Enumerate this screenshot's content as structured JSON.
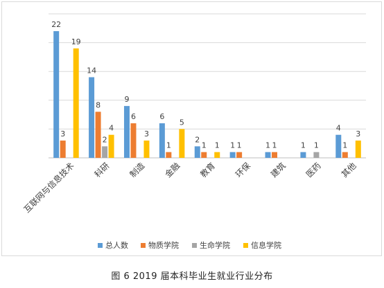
{
  "chart_data": {
    "type": "bar",
    "title": "",
    "xlabel": "",
    "ylabel": "",
    "ylim": [
      0,
      25
    ],
    "grid": true,
    "legend_position": "bottom",
    "categories": [
      "互联网与信息技术",
      "科研",
      "制造",
      "金融",
      "教育",
      "环保",
      "建筑",
      "医药",
      "其他"
    ],
    "series": [
      {
        "name": "总人数",
        "color": "#5b9bd5",
        "values": [
          22,
          14,
          9,
          6,
          2,
          1,
          1,
          1,
          4
        ]
      },
      {
        "name": "物质学院",
        "color": "#ed7d31",
        "values": [
          3,
          8,
          6,
          1,
          1,
          1,
          1,
          null,
          1
        ]
      },
      {
        "name": "生命学院",
        "color": "#a5a5a5",
        "values": [
          null,
          2,
          null,
          null,
          null,
          null,
          null,
          1,
          null
        ]
      },
      {
        "name": "信息学院",
        "color": "#ffc000",
        "values": [
          19,
          4,
          3,
          5,
          1,
          null,
          null,
          null,
          3
        ]
      }
    ]
  },
  "caption": "图 6 2019 届本科毕业生就业行业分布"
}
